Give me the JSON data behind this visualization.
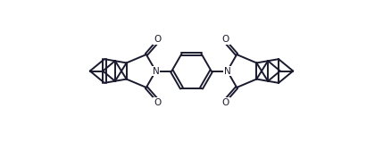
{
  "background_color": "#ffffff",
  "line_color": "#1a1a2e",
  "line_width": 1.4,
  "figsize": [
    4.29,
    1.59
  ],
  "dpi": 100,
  "xlim": [
    0,
    10
  ],
  "ylim": [
    0,
    3.7
  ]
}
